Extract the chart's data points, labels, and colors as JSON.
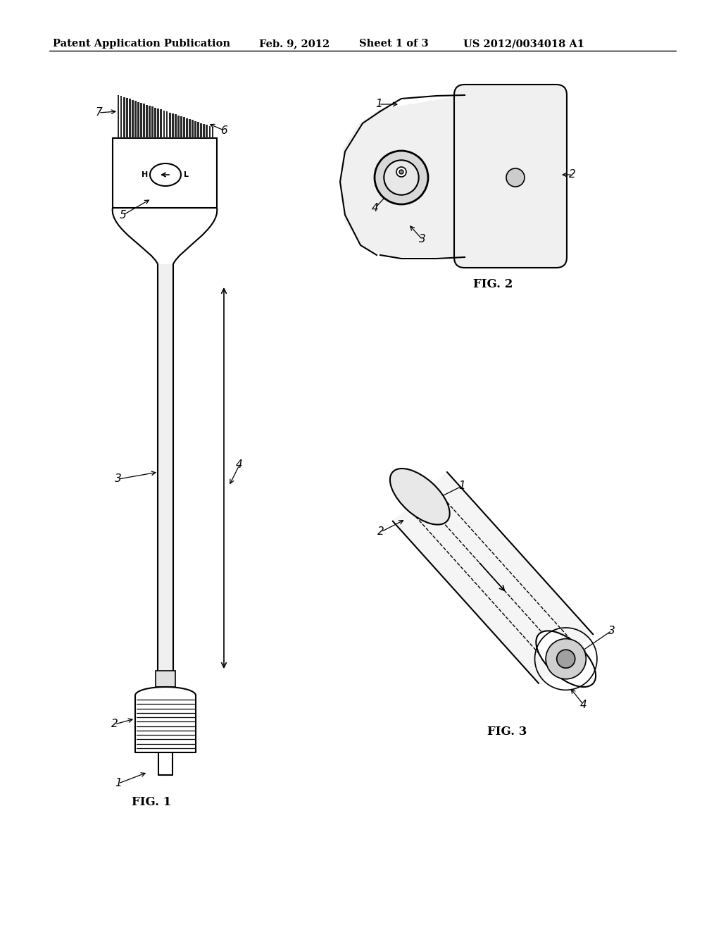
{
  "bg_color": "#ffffff",
  "header_text": "Patent Application Publication",
  "header_date": "Feb. 9, 2012",
  "header_sheet": "Sheet 1 of 3",
  "header_patent": "US 2012/0034018 A1",
  "fig1_label": "FIG. 1",
  "fig2_label": "FIG. 2",
  "fig3_label": "FIG. 3",
  "line_color": "#000000"
}
